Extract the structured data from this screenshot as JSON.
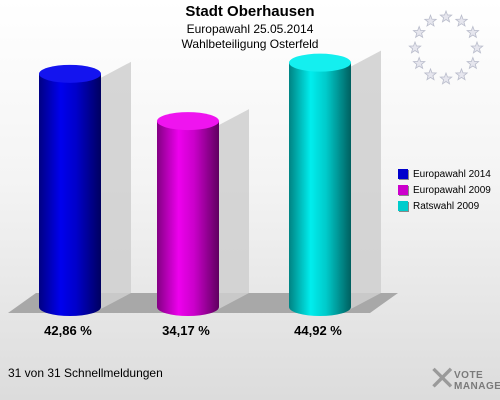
{
  "header": {
    "title": "Stadt Oberhausen",
    "subtitle": "Europawahl 25.05.2014",
    "subtitle2": "Wahlbeteiligung Osterfeld"
  },
  "chart_data": {
    "type": "bar",
    "categories": [
      "Europawahl 2014",
      "Europawahl 2009",
      "Ratswahl 2009"
    ],
    "values": [
      42.86,
      34.17,
      44.92
    ],
    "value_labels": [
      "42,86 %",
      "34,17 %",
      "44,92 %"
    ],
    "colors": [
      "#0000ee",
      "#ee00ee",
      "#00eeee"
    ],
    "ylim": [
      0,
      50
    ],
    "legend_position": "right",
    "grid": false
  },
  "legend": {
    "items": [
      {
        "label": "Europawahl 2014",
        "color": "#0000cc"
      },
      {
        "label": "Europawahl 2009",
        "color": "#cc00cc"
      },
      {
        "label": "Ratswahl 2009",
        "color": "#00cccc"
      }
    ]
  },
  "footer": {
    "text": "31 von 31 Schnellmeldungen"
  },
  "logo": {
    "line1": "VOTE",
    "line2": "MANAGER",
    "icon": "vote-x-icon"
  },
  "emblem": {
    "icon": "eu-stars-icon"
  }
}
